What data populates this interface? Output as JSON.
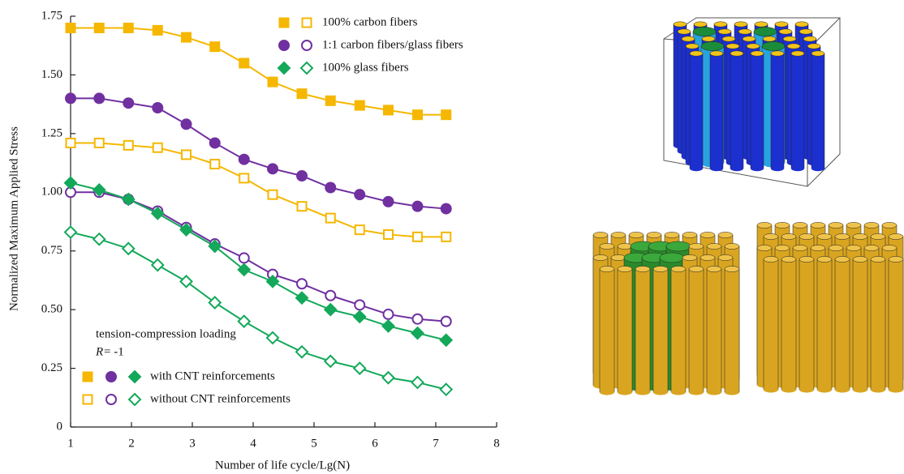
{
  "chart_data": {
    "type": "line",
    "x_label": "Number of life cycle/Lg(N)",
    "y_label": "Normalized Maximum Applied Stress",
    "x": [
      1.0,
      1.47,
      1.95,
      2.43,
      2.9,
      3.37,
      3.85,
      4.32,
      4.8,
      5.27,
      5.75,
      6.22,
      6.7,
      7.17
    ],
    "xlim": [
      1,
      8
    ],
    "xticks": [
      1,
      2,
      3,
      4,
      5,
      6,
      7,
      8
    ],
    "ylim": [
      0,
      1.75
    ],
    "yticks": [
      0,
      0.25,
      {
        "value": 0.5,
        "label": "0.50"
      },
      0.75,
      {
        "value": 1.0,
        "label": "1.00"
      },
      1.25,
      {
        "value": 1.5,
        "label": "1.50"
      },
      1.75
    ],
    "conditions": [
      "with CNT reinforcements",
      "without CNT reinforcements"
    ],
    "annotations": [
      "tension-compression loading",
      "R",
      "= -1"
    ],
    "series": [
      {
        "name": "100% carbon fibers",
        "color": "#f5b700",
        "marker": "square",
        "with_cnt": [
          1.7,
          1.7,
          1.7,
          1.69,
          1.66,
          1.62,
          1.55,
          1.47,
          1.42,
          1.39,
          1.37,
          1.35,
          1.33,
          1.33
        ],
        "without_cnt": [
          1.21,
          1.21,
          1.2,
          1.19,
          1.16,
          1.12,
          1.06,
          0.99,
          0.94,
          0.89,
          0.84,
          0.82,
          0.81,
          0.81
        ]
      },
      {
        "name": "1:1 carbon fibers/glass fibers",
        "color": "#7030a0",
        "marker": "circle",
        "with_cnt": [
          1.4,
          1.4,
          1.38,
          1.36,
          1.29,
          1.21,
          1.14,
          1.1,
          1.07,
          1.02,
          0.99,
          0.96,
          0.94,
          0.93
        ],
        "without_cnt": [
          1.0,
          1.0,
          0.97,
          0.92,
          0.85,
          0.78,
          0.72,
          0.65,
          0.61,
          0.56,
          0.52,
          0.48,
          0.46,
          0.45
        ]
      },
      {
        "name": "100% glass fibers",
        "color": "#13a85a",
        "marker": "diamond",
        "with_cnt": [
          1.04,
          1.01,
          0.97,
          0.91,
          0.84,
          0.77,
          0.67,
          0.62,
          0.55,
          0.5,
          0.47,
          0.43,
          0.4,
          0.37
        ],
        "without_cnt": [
          0.83,
          0.8,
          0.76,
          0.69,
          0.62,
          0.53,
          0.45,
          0.38,
          0.32,
          0.28,
          0.25,
          0.21,
          0.19,
          0.16
        ]
      }
    ]
  }
}
